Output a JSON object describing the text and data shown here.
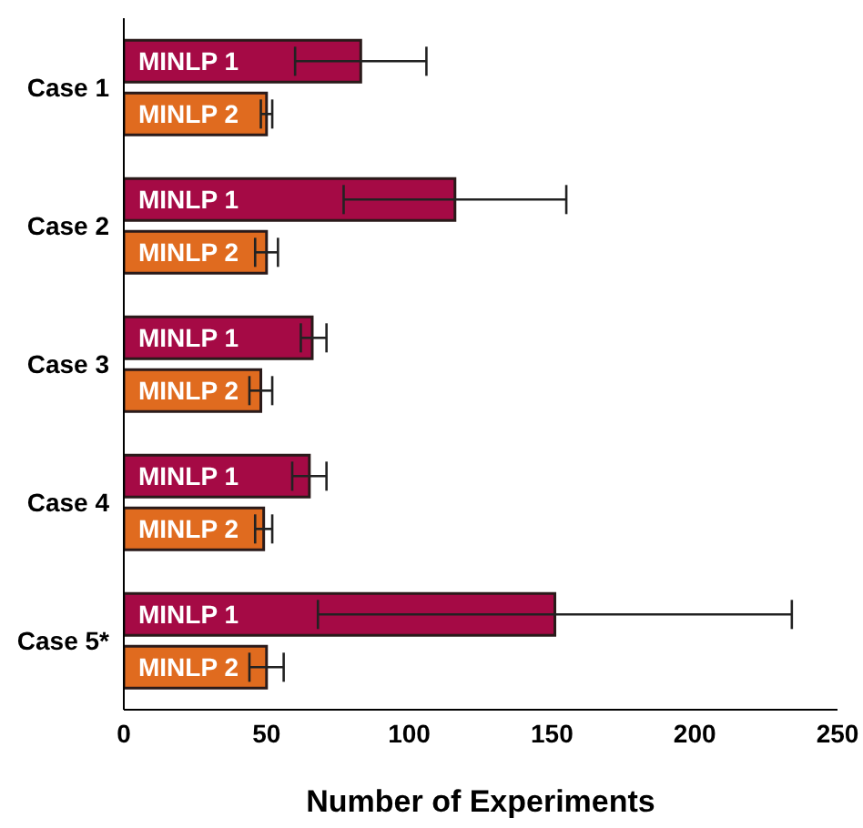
{
  "chart_data": {
    "type": "bar",
    "orientation": "horizontal",
    "xlabel": "Number of Experiments",
    "categories": [
      "Case 1",
      "Case 2",
      "Case 3",
      "Case 4",
      "Case 5*"
    ],
    "series": [
      {
        "name": "MINLP 1",
        "color": "#a50a45",
        "values": [
          83,
          116,
          66,
          65,
          151
        ],
        "errors": [
          [
            60,
            106
          ],
          [
            77,
            155
          ],
          [
            62,
            71
          ],
          [
            59,
            71
          ],
          [
            68,
            234
          ]
        ]
      },
      {
        "name": "MINLP 2",
        "color": "#e06b1f",
        "values": [
          50,
          50,
          48,
          49,
          50
        ],
        "errors": [
          [
            48,
            52
          ],
          [
            46,
            54
          ],
          [
            44,
            52
          ],
          [
            46,
            52
          ],
          [
            44,
            56
          ]
        ]
      }
    ],
    "xlim": [
      0,
      250
    ],
    "xticks": [
      0,
      50,
      100,
      150,
      200,
      250
    ]
  }
}
